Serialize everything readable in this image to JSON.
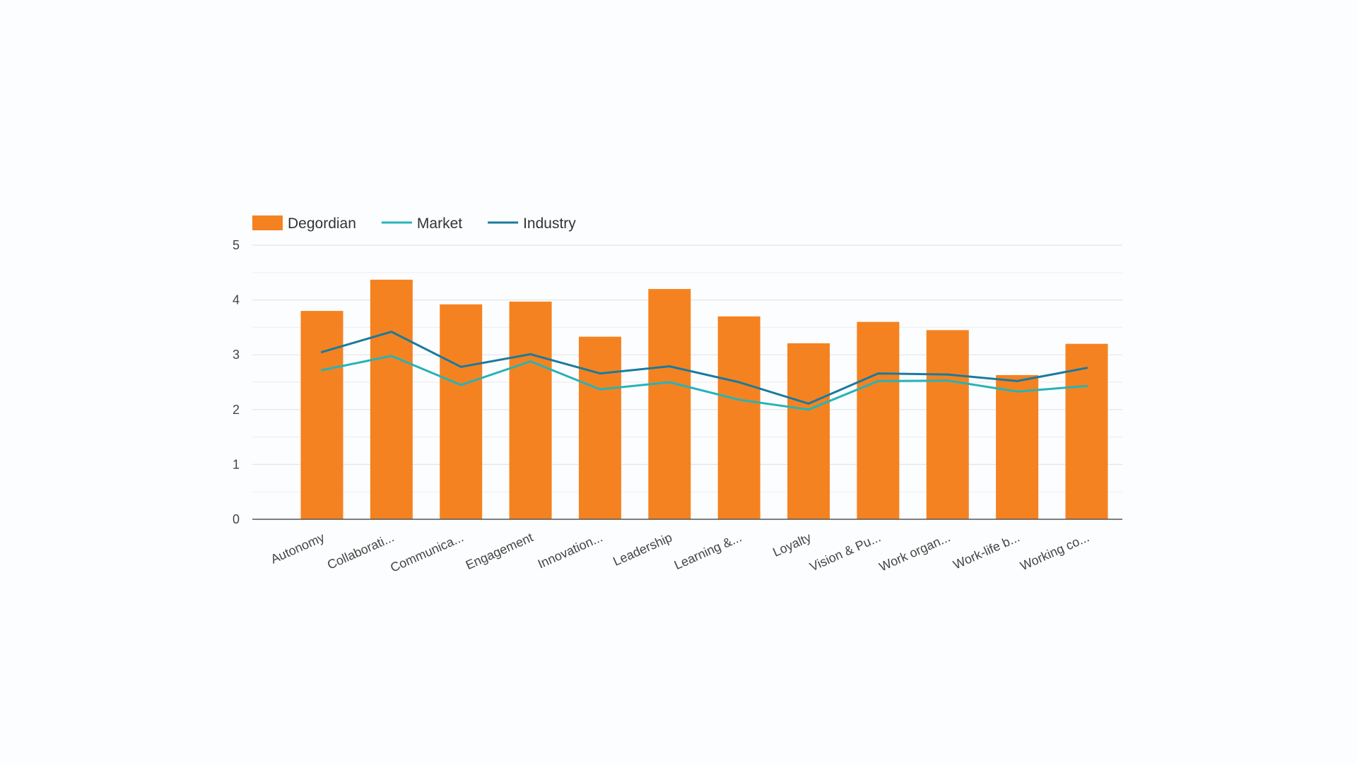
{
  "chart_data": {
    "type": "bar",
    "categories": [
      "Autonomy",
      "Collaborati...",
      "Communica...",
      "Engagement",
      "Innovation...",
      "Leadership",
      "Learning &...",
      "Loyalty",
      "Vision & Pu...",
      "Work organ...",
      "Work-life b...",
      "Working co..."
    ],
    "series": [
      {
        "name": "Degordian",
        "kind": "bar",
        "values": [
          3.8,
          4.37,
          3.92,
          3.97,
          3.33,
          4.2,
          3.7,
          3.21,
          3.6,
          3.45,
          2.63,
          3.2
        ]
      },
      {
        "name": "Market",
        "kind": "line",
        "values": [
          2.72,
          2.98,
          2.45,
          2.88,
          2.37,
          2.5,
          2.18,
          2.0,
          2.52,
          2.53,
          2.33,
          2.43
        ]
      },
      {
        "name": "Industry",
        "kind": "line",
        "values": [
          3.05,
          3.42,
          2.78,
          3.01,
          2.66,
          2.79,
          2.5,
          2.11,
          2.66,
          2.64,
          2.52,
          2.76
        ]
      }
    ],
    "yticks": [
      "0",
      "1",
      "2",
      "3",
      "4",
      "5"
    ],
    "ylim": [
      0,
      5
    ],
    "grid": true,
    "legend": "top-left",
    "colors": {
      "Degordian": "#f58220",
      "Market": "#26b3b8",
      "Industry": "#1a7a9e"
    }
  }
}
